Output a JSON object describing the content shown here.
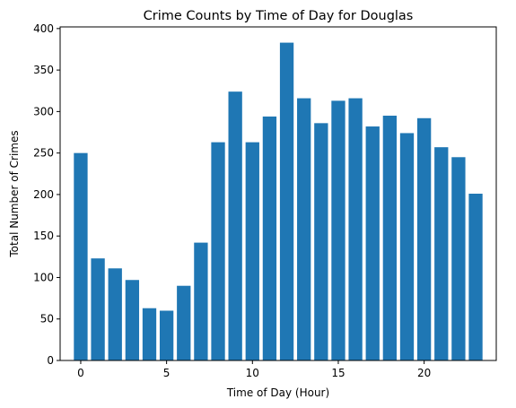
{
  "chart_data": {
    "type": "bar",
    "title": "Crime Counts by Time of Day for Douglas",
    "xlabel": "Time of Day (Hour)",
    "ylabel": "Total Number of Crimes",
    "x": [
      0,
      1,
      2,
      3,
      4,
      5,
      6,
      7,
      8,
      9,
      10,
      11,
      12,
      13,
      14,
      15,
      16,
      17,
      18,
      19,
      20,
      21,
      22,
      23
    ],
    "values": [
      250,
      123,
      111,
      97,
      63,
      60,
      90,
      142,
      263,
      324,
      263,
      294,
      383,
      316,
      286,
      313,
      316,
      282,
      295,
      274,
      292,
      257,
      245,
      201
    ],
    "xlim": [
      -1.2,
      24.2
    ],
    "ylim": [
      0,
      402
    ],
    "xticks": [
      0,
      5,
      10,
      15,
      20
    ],
    "yticks": [
      0,
      50,
      100,
      150,
      200,
      250,
      300,
      350,
      400
    ],
    "bar_color": "#1f77b4",
    "grid": false,
    "legend": "none"
  }
}
